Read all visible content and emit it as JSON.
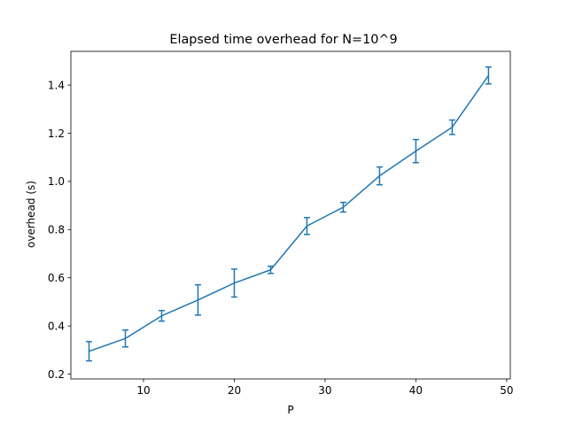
{
  "chart_data": {
    "type": "line",
    "title": "Elapsed time overhead for N=10^9",
    "xlabel": "P",
    "ylabel": "overhead (s)",
    "xlim": [
      2,
      50.4
    ],
    "ylim": [
      0.18,
      1.54
    ],
    "xticks": [
      10,
      20,
      30,
      40,
      50
    ],
    "yticks": [
      0.2,
      0.4,
      0.6,
      0.8,
      1.0,
      1.2,
      1.4
    ],
    "xtick_labels": [
      "10",
      "20",
      "30",
      "40",
      "50"
    ],
    "ytick_labels": [
      "0.2",
      "0.4",
      "0.6",
      "0.8",
      "1.0",
      "1.2",
      "1.4"
    ],
    "grid": false,
    "series": [
      {
        "color": "#1f77b4",
        "x": [
          4,
          8,
          12,
          16,
          20,
          24,
          28,
          32,
          36,
          40,
          44,
          48
        ],
        "y": [
          0.295,
          0.348,
          0.442,
          0.508,
          0.578,
          0.633,
          0.815,
          0.893,
          1.023,
          1.126,
          1.225,
          1.44
        ],
        "yerr": [
          0.04,
          0.035,
          0.022,
          0.063,
          0.058,
          0.015,
          0.035,
          0.02,
          0.037,
          0.048,
          0.03,
          0.035
        ]
      }
    ]
  }
}
